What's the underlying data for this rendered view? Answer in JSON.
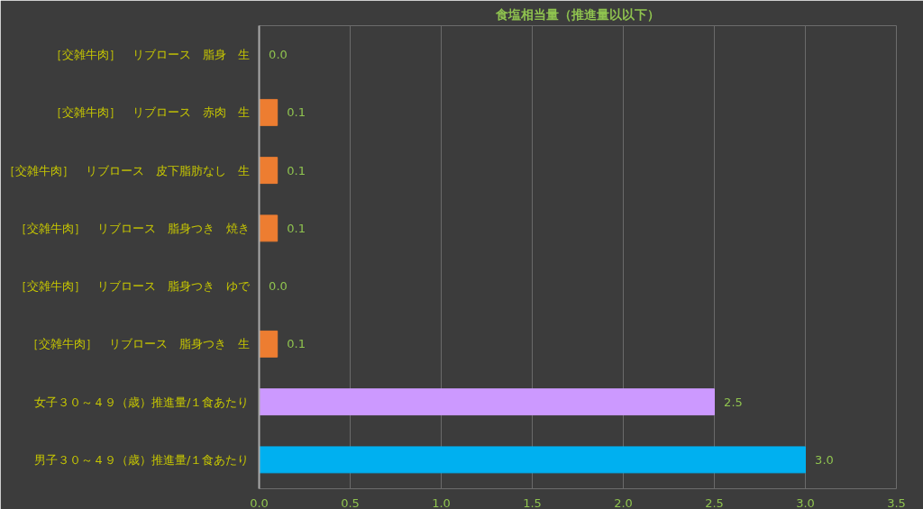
{
  "chart_data": {
    "type": "bar",
    "orientation": "horizontal",
    "title": "食塩相当量（推進量以以下）",
    "categories": [
      "［交雑牛肉］　リブロース　脂身　生",
      "［交雑牛肉］　リブロース　赤肉　生",
      "［交雑牛肉］　リブロース　皮下脂肪なし　生",
      "［交雑牛肉］　リブロース　脂身つき　焼き",
      "［交雑牛肉］　リブロース　脂身つき　ゆで",
      "［交雑牛肉］　リブロース　脂身つき　生",
      "女子３０～４９（歳）推進量/１食あたり",
      "男子３０～４９（歳）推進量/１食あたり"
    ],
    "values": [
      0.0,
      0.1,
      0.1,
      0.1,
      0.0,
      0.1,
      2.5,
      3.0
    ],
    "colors": [
      "#ed7d31",
      "#ed7d31",
      "#ed7d31",
      "#ed7d31",
      "#ed7d31",
      "#ed7d31",
      "#cc99ff",
      "#00b0f0"
    ],
    "xlim": [
      0,
      3.5
    ],
    "xticks": [
      {
        "value": 0,
        "label": "0.0"
      },
      {
        "value": 0.5,
        "label": "0.5"
      },
      {
        "value": 1,
        "label": "1.0"
      },
      {
        "value": 1.5,
        "label": "1.5"
      },
      {
        "value": 2,
        "label": "2.0"
      },
      {
        "value": 2.5,
        "label": "2.5"
      },
      {
        "value": 3,
        "label": "3.0"
      },
      {
        "value": 3.5,
        "label": "3.5"
      }
    ],
    "value_labels": [
      "0.0",
      "0.1",
      "0.1",
      "0.1",
      "0.0",
      "0.1",
      "2.5",
      "3.0"
    ],
    "grid": "x"
  }
}
